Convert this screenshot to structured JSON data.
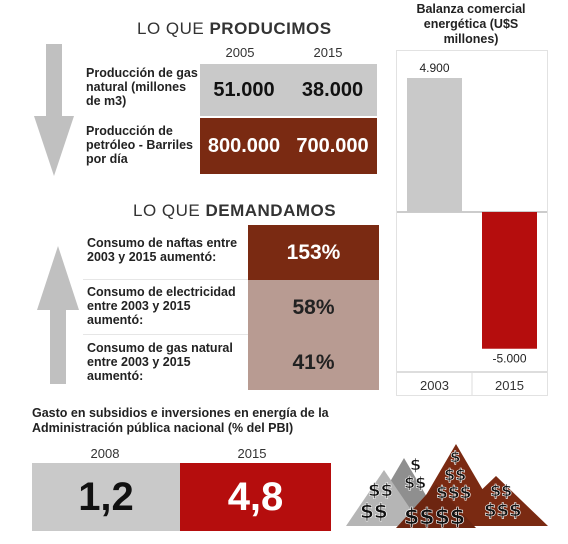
{
  "producimos": {
    "title_prefix": "LO QUE ",
    "title_bold": "PRODUCIMOS",
    "years": [
      "2005",
      "2015"
    ],
    "rows": [
      {
        "label": "Producción de gas natural (millones de m3)",
        "values": [
          "51.000",
          "38.000"
        ]
      },
      {
        "label": "Producción de petróleo - Barriles por día",
        "values": [
          "800.000",
          "700.000"
        ]
      }
    ]
  },
  "demandamos": {
    "title_prefix": "LO QUE ",
    "title_bold": "DEMANDAMOS",
    "rows": [
      {
        "label": "Consumo de naftas entre 2003 y 2015 aumentó:",
        "value": "153%"
      },
      {
        "label": "Consumo de electricidad entre 2003 y 2015 aumentó:",
        "value": "58%"
      },
      {
        "label": "Consumo de gas natural entre 2003 y 2015 aumentó:",
        "value": "41%"
      }
    ]
  },
  "subsidios": {
    "title": "Gasto en subsidios e inversiones en energía de la Administración pública nacional (% del PBI)",
    "years": [
      "2008",
      "2015"
    ],
    "values": [
      "1,2",
      "4,8"
    ]
  },
  "balanza": {
    "title": "Balanza comercial energética (U$S millones)"
  },
  "colors": {
    "gray": "#c9c9c9",
    "dark_red": "#7a2a12",
    "red": "#b50d0d",
    "tan": "#b89b92",
    "arrow": "#c0c0c0"
  },
  "icons": [
    "down-arrow-icon",
    "up-arrow-icon",
    "money-pyramids-icon"
  ],
  "chart_data": {
    "type": "bar",
    "title": "Balanza comercial energética (U$S millones)",
    "categories": [
      "2003",
      "2015"
    ],
    "values": [
      4900,
      -5000
    ],
    "data_labels": [
      "4.900",
      "-5.000"
    ],
    "ylim": [
      -5000,
      4900
    ],
    "grid": false,
    "colors": [
      "#c9c9c9",
      "#b50d0d"
    ]
  }
}
